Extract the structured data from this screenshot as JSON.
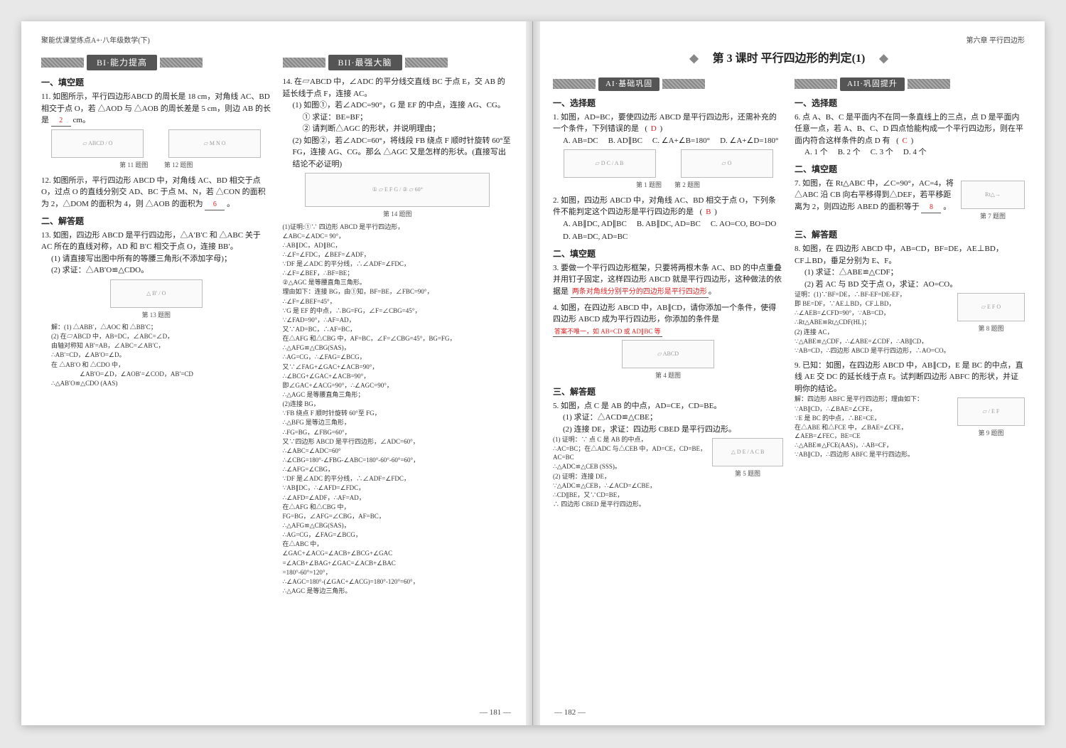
{
  "colors": {
    "page_bg": "#ffffff",
    "text": "#222222",
    "answer": "#d22222",
    "banner_bg": "#555555",
    "banner_fg": "#ffffff",
    "fig_border": "#bbbbbb"
  },
  "typography": {
    "body_fontsize_pt": 8,
    "title_fontsize_pt": 12,
    "font_family": "SimSun / serif"
  },
  "layout": {
    "spread_w": 1440,
    "spread_h": 990,
    "columns_per_page": 2
  },
  "left": {
    "running": "聚能优课堂练点A+·八年级数学(下)",
    "page_no": "— 181 —",
    "bannerB1": "BI·能力提高",
    "bannerB2": "BII·最强大脑",
    "catFill": "一、填空题",
    "catSolve": "二、解答题",
    "q11": {
      "text": "11. 如图所示，平行四边形ABCD 的周长是 18 cm，对角线 AC、BD 相交于点 O，若 △AOD 与 △AOB 的周长差是 5 cm，则边 AB 的长是",
      "blank": "2",
      "unit": "cm。",
      "cap1": "第 11 题图",
      "cap2": "第 12 题图"
    },
    "q12": {
      "text": "12. 如图所示，平行四边形 ABCD 中，对角线 AC、BD 相交于点 O，过点 O 的直线分别交 AD、BC 于点 M、N，若 △CON 的面积为 2，△DOM 的面积为 4，则 △AOB 的面积为",
      "blank": "6",
      "tail": "。"
    },
    "q13": {
      "text": "13. 如图，四边形 ABCD 是平行四边形，△A′B′C 和 △ABC 关于 AC 所在的直线对称，AD 和 B′C 相交于点 O，连接 BB′。",
      "p1": "(1) 请直接写出图中所有的等腰三角形(不添加字母)；",
      "p2": "(2) 求证：△AB′O≌△CDO。",
      "cap": "第 13 题图",
      "sol_head": "解：(1) △ABB′，△AOC 和 △BB′C；",
      "sol_a": "(2) 在▱ABCD 中，AB=DC，∠ABC=∠D，",
      "sol_b": "由轴对称知 AB′=AB，∠ABC=∠AB′C，",
      "sol_c": "∴AB′=CD，∠AB′O=∠D。",
      "sol_d": "在 △AB′O 和 △CDO 中，",
      "sol_e": "∠AB′O=∠D，∠AOB′=∠COD，AB′=CD",
      "sol_f": "∴△AB′O≌△CDO (AAS)"
    },
    "q14": {
      "text": "14. 在▱ABCD 中，∠ADC 的平分线交直线 BC 于点 E，交 AB 的延长线于点 F，连接 AC。",
      "p1": "(1) 如图①，若∠ADC=90°，G 是 EF 的中点，连接 AG、CG。",
      "p1a": "① 求证：BE=BF；",
      "p1b": "② 请判断△AGC 的形状，并说明理由；",
      "p2": "(2) 如图②，若∠ADC=60°，将线段 FB 绕点 F 顺时针旋转 60°至 FG，连接 AG、CG。那么 △AGC 又是怎样的形状。(直接写出结论不必证明)",
      "cap": "第 14 题图",
      "proof_lines": [
        "(1)证明:①∵ 四边形 ABCD 是平行四边形，",
        "∠ABC=∠ADC= 90°，",
        "∴AB∥DC，AD∥BC，",
        "∴∠F=∠FDC，∠BEF=∠ADF，",
        "∵DF 是∠ADC 的平分线，∴∠ADF=∠FDC，",
        "∴∠F=∠BEF，∴BF=BE；",
        "②△AGC 是等腰直角三角形。",
        "理由如下：连接 BG，由①知，BF=BE，∠FBC=90°，",
        "∴∠F=∠BEF=45°，",
        "∵G 是 EF 的中点，∴BG=FG，∠F=∠CBG=45°，",
        "∵∠FAD=90°，∴AF=AD，",
        "又∵AD=BC，∴AF=BC，",
        "在△AFG 和△CBG 中，AF=BC，∠F=∠CBG=45°，BG=FG，",
        "∴△AFG≌△CBG(SAS)，",
        "∴AG=CG，∴∠FAG=∠BCG，",
        "又∵∠FAG+∠GAC+∠ACB=90°，",
        "∴∠BCG+∠GAC+∠ACB=90°，",
        "即∠GAC+∠ACG=90°，∴∠AGC=90°，",
        "∴△AGC 是等腰直角三角形；",
        "(2)连接 BG，",
        "∵FB 绕点 F 顺时针旋转 60°至 FG，",
        "∴△BFG 是等边三角形，",
        "∴FG=BG，∠FBG=60°，",
        "又∵四边形 ABCD 是平行四边形，∠ADC=60°，",
        "∴∠ABC=∠ADC=60°",
        "∴∠CBG=180°-∠FBG-∠ABC=180°-60°-60°=60°，",
        "∴∠AFG=∠CBG，",
        "∵DF 是∠ADC 的平分线，∴∠ADF=∠FDC，",
        "∵AB∥DC，∴∠AFD=∠FDC，",
        "∴∠AFD=∠ADF，∴AF=AD，",
        "在△AFG 和△CBG 中，",
        "FG=BG，∠AFG=∠CBG，AF=BC，",
        "∴△AFG≌△CBG(SAS)，",
        "∴AG=CG，∠FAG=∠BCG，",
        "在△ABC 中，",
        "∠GAC+∠ACG=∠ACB+∠BCG+∠GAC",
        "=∠ACB+∠BAG+∠GAC=∠ACB+∠BAC",
        "=180°-60°=120°，",
        "∴∠AGC=180°-(∠GAC+∠ACG)=180°-120°=60°，",
        "∴△AGC 是等边三角形。"
      ]
    }
  },
  "right": {
    "running": "第六章  平行四边形",
    "page_no": "— 182 —",
    "lesson": "第 3 课时  平行四边形的判定(1)",
    "bannerA1": "AI·基础巩固",
    "bannerA2": "AII·巩固提升",
    "catChoice": "一、选择题",
    "catFill": "二、填空题",
    "catSolve": "三、解答题",
    "q1": {
      "text": "1. 如图，AD=BC，要使四边形 ABCD 是平行四边形，还需补充的一个条件，下列错误的是",
      "ans": "D",
      "opts": [
        "A. AB=DC",
        "B. AD∥BC",
        "C. ∠A+∠B=180°",
        "D. ∠A+∠D=180°"
      ],
      "cap1": "第 1 题图",
      "cap2": "第 2 题图"
    },
    "q2": {
      "text": "2. 如图，四边形 ABCD 中，对角线 AC、BD 相交于点 O，下列条件不能判定这个四边形是平行四边形的是",
      "ans": "B",
      "opts": [
        "A. AB∥DC, AD∥BC",
        "B. AB∥DC, AD=BC",
        "C. AO=CO, BO=DO",
        "D. AB=DC, AD=BC"
      ]
    },
    "q3": {
      "text": "3. 要做一个平行四边形框架，只要将两根木条 AC、BD 的中点重叠并用钉子固定，这样四边形 ABCD 就是平行四边形，这种做法的依据是",
      "blank": "两条对角线分别平分的四边形是平行四边形"
    },
    "q4": {
      "text": "4. 如图，在四边形 ABCD 中，AB∥CD，请你添加一个条件，使得四边形 ABCD 成为平行四边形，你添加的条件是",
      "blank": "答案不唯一，如 AB=CD 或 AD∥BC 等",
      "cap": "第 4 题图"
    },
    "q5": {
      "text": "5. 如图，点 C 是 AB 的中点，AD=CE，CD=BE。",
      "p1": "(1) 求证：△ACD≌△CBE；",
      "p2": "(2) 连接 DE，求证：四边形 CBED 是平行四边形。",
      "cap": "第 5 题图",
      "proof": [
        "(1) 证明：∵ 点 C 是 AB 的中点，",
        "∴AC=BC；在△ADC 与△CEB 中，AD=CE，CD=BE，AC=BC",
        "∴△ADC≌△CEB (SSS)。",
        "(2) 证明：连接 DE，",
        "∵△ADC≌△CEB，∴∠ACD=∠CBE，",
        "∴CD∥BE，又∵CD=BE，",
        "∴ 四边形 CBED 是平行四边形。"
      ]
    },
    "q6": {
      "text": "6. 点 A、B、C 是平面内不在同一条直线上的三点，点 D 是平面内任意一点，若 A、B、C、D 四点恰能构成一个平行四边形，则在平面内符合这样条件的点 D 有",
      "ans": "C",
      "opts": [
        "A. 1 个",
        "B. 2 个",
        "C. 3 个",
        "D. 4 个"
      ]
    },
    "q7": {
      "text": "7. 如图，在 Rt△ABC 中，∠C=90°，AC=4，将△ABC 沿 CB 向右平移得到△DEF，若平移距离为 2，则四边形 ABED 的面积等于",
      "blank": "8",
      "tail": "。",
      "cap": "第 7 题图"
    },
    "q8": {
      "text": "8. 如图，在 四边形 ABCD 中，AB=CD，BF=DE，AE⊥BD，CF⊥BD，垂足分别为 E、F。",
      "p1": "(1) 求证：△ABE≌△CDF；",
      "p2": "(2) 若 AC 与 BD 交于点 O，求证：AO=CO。",
      "cap": "第 8 题图",
      "proof": [
        "证明：(1)∵BF=DE，∴BF-EF=DE-EF，",
        "即 BE=DF，∵AE⊥BD，CF⊥BD，",
        "∴∠AEB=∠CFD=90°，∵AB=CD，",
        "∴Rt△ABE≌Rt△CDF(HL)；",
        "(2) 连接 AC，",
        "∵△ABE≌△CDF，∴∠ABE=∠CDF，∴AB∥CD，",
        "∵AB=CD，∴四边形 ABCD 是平行四边形，∴AO=CO。"
      ]
    },
    "q9": {
      "text": "9. 已知：如图，在四边形 ABCD 中，AB∥CD，E 是 BC 的中点，直线 AE 交 DC 的延长线于点 F。试判断四边形 ABFC 的形状，并证明你的结论。",
      "cap": "第 9 题图",
      "proof": [
        "解：四边形 ABFC 是平行四边形；理由如下：",
        "∵AB∥CD，∴∠BAE=∠CFE，",
        "∵E 是 BC 的中点，∴BE=CE，",
        "在△ABE 和△FCE 中，∠BAE=∠CFE，∠AEB=∠FEC，BE=CE",
        "∴△ABE≌△FCE(AAS)，∴AB=CF，",
        "∵AB∥CD，∴四边形 ABFC 是平行四边形。"
      ]
    }
  }
}
